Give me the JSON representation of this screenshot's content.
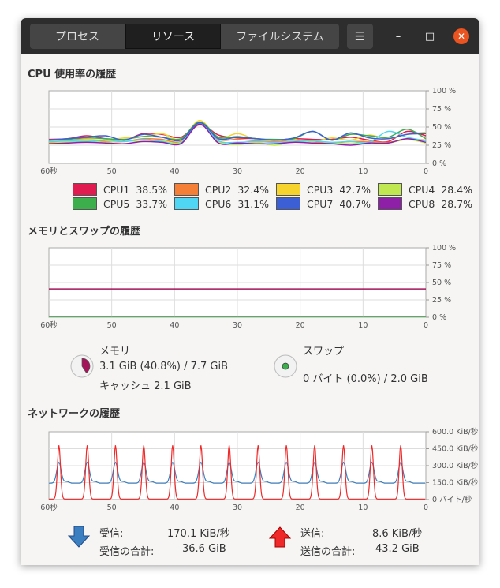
{
  "tabs": [
    "プロセス",
    "リソース",
    "ファイルシステム"
  ],
  "selected_tab": 1,
  "window_controls": {
    "menu": "☰",
    "minimize": "–",
    "maximize": "□",
    "close": "✕"
  },
  "cpu": {
    "title": "CPU 使用率の履歴",
    "legend": [
      {
        "label": "CPU1",
        "value": "38.5%",
        "color": "#e01b4f"
      },
      {
        "label": "CPU2",
        "value": "32.4%",
        "color": "#f57f37"
      },
      {
        "label": "CPU3",
        "value": "42.7%",
        "color": "#f6d32d"
      },
      {
        "label": "CPU4",
        "value": "28.4%",
        "color": "#c0e850"
      },
      {
        "label": "CPU5",
        "value": "33.7%",
        "color": "#3cae4b"
      },
      {
        "label": "CPU6",
        "value": "31.1%",
        "color": "#4fd6f5"
      },
      {
        "label": "CPU7",
        "value": "40.7%",
        "color": "#3d5fd6"
      },
      {
        "label": "CPU8",
        "value": "28.7%",
        "color": "#8e20a8"
      }
    ]
  },
  "memory": {
    "title": "メモリとスワップの履歴",
    "mem_label": "メモリ",
    "mem_value": "3.1 GiB (40.8%) / 7.7 GiB",
    "cache": "キャッシュ 2.1 GiB",
    "mem_fraction": 0.408,
    "mem_color": "#a5145a",
    "swap_label": "スワップ",
    "swap_value": "0 バイト (0.0%) / 2.0 GiB",
    "swap_fraction": 0.0,
    "swap_color": "#3cae4b"
  },
  "network": {
    "title": "ネットワークの履歴",
    "recv_label": "受信:",
    "recv_value": "170.1 KiB/秒",
    "recv_total_label": "受信の合計:",
    "recv_total": "36.6 GiB",
    "send_label": "送信:",
    "send_value": "8.6 KiB/秒",
    "send_total_label": "送信の合計:",
    "send_total": "43.2 GiB",
    "recv_color": "#3b7fc0",
    "send_color": "#ef2929"
  },
  "chart_data": [
    {
      "type": "line",
      "x_ticks": [
        "60秒",
        "50",
        "40",
        "30",
        "20",
        "10",
        "0"
      ],
      "y_ticks": [
        "100 %",
        "75 %",
        "50 %",
        "25 %",
        "0 %"
      ],
      "ylim": [
        0,
        100
      ],
      "xlim": [
        60,
        0
      ],
      "grid": true,
      "x": [
        60,
        57,
        54,
        51,
        48,
        45,
        42,
        39,
        36,
        33,
        30,
        27,
        24,
        21,
        18,
        15,
        12,
        9,
        6,
        3,
        0
      ],
      "series": [
        {
          "name": "CPU1",
          "values": [
            33,
            34,
            38,
            34,
            32,
            41,
            40,
            36,
            54,
            39,
            35,
            34,
            32,
            34,
            33,
            33,
            36,
            32,
            30,
            44,
            38
          ]
        },
        {
          "name": "CPU2",
          "values": [
            29,
            31,
            33,
            30,
            30,
            34,
            33,
            30,
            53,
            33,
            33,
            31,
            30,
            32,
            30,
            28,
            30,
            30,
            29,
            33,
            32
          ]
        },
        {
          "name": "CPU3",
          "values": [
            31,
            30,
            33,
            32,
            35,
            37,
            41,
            33,
            59,
            35,
            41,
            33,
            32,
            33,
            30,
            35,
            32,
            39,
            34,
            40,
            43
          ]
        },
        {
          "name": "CPU4",
          "values": [
            28,
            29,
            31,
            29,
            31,
            30,
            31,
            29,
            55,
            30,
            26,
            29,
            25,
            30,
            28,
            28,
            27,
            29,
            28,
            33,
            28
          ]
        },
        {
          "name": "CPU5",
          "values": [
            32,
            33,
            35,
            34,
            33,
            37,
            36,
            34,
            57,
            36,
            37,
            34,
            33,
            34,
            44,
            32,
            40,
            38,
            36,
            47,
            34
          ]
        },
        {
          "name": "CPU6",
          "values": [
            30,
            31,
            30,
            32,
            30,
            33,
            30,
            28,
            55,
            31,
            29,
            30,
            29,
            30,
            31,
            29,
            30,
            29,
            44,
            36,
            31
          ]
        },
        {
          "name": "CPU7",
          "values": [
            32,
            34,
            36,
            38,
            32,
            40,
            36,
            32,
            56,
            34,
            36,
            34,
            32,
            35,
            44,
            32,
            42,
            35,
            34,
            40,
            41
          ]
        },
        {
          "name": "CPU8",
          "values": [
            27,
            28,
            29,
            28,
            27,
            30,
            29,
            27,
            54,
            28,
            28,
            27,
            27,
            29,
            28,
            27,
            25,
            28,
            28,
            34,
            29
          ]
        }
      ]
    },
    {
      "type": "line",
      "x_ticks": [
        "60秒",
        "50",
        "40",
        "30",
        "20",
        "10",
        "0"
      ],
      "y_ticks": [
        "100 %",
        "75 %",
        "50 %",
        "25 %",
        "0 %"
      ],
      "ylim": [
        0,
        100
      ],
      "xlim": [
        60,
        0
      ],
      "grid": true,
      "x": [
        60,
        0
      ],
      "series": [
        {
          "name": "メモリ",
          "values": [
            40.8,
            40.8
          ]
        },
        {
          "name": "スワップ",
          "values": [
            0,
            0
          ]
        }
      ]
    },
    {
      "type": "line",
      "x_ticks": [
        "60秒",
        "50",
        "40",
        "30",
        "20",
        "10",
        "0"
      ],
      "y_ticks": [
        "600.0 KiB/秒",
        "450.0 KiB/秒",
        "300.0 KiB/秒",
        "150.0 KiB/秒",
        "0 バイト/秒"
      ],
      "ylim": [
        0,
        600
      ],
      "xlim": [
        60,
        0
      ],
      "grid": true,
      "peak_times": [
        58.4,
        53.9,
        49.4,
        44.9,
        40.3,
        35.8,
        31.3,
        26.7,
        22.2,
        17.7,
        13.1,
        8.6,
        4.0
      ],
      "series": [
        {
          "name": "受信",
          "baseline": 145,
          "peak": 330
        },
        {
          "name": "送信",
          "baseline": 5,
          "peak": 480
        }
      ]
    }
  ]
}
